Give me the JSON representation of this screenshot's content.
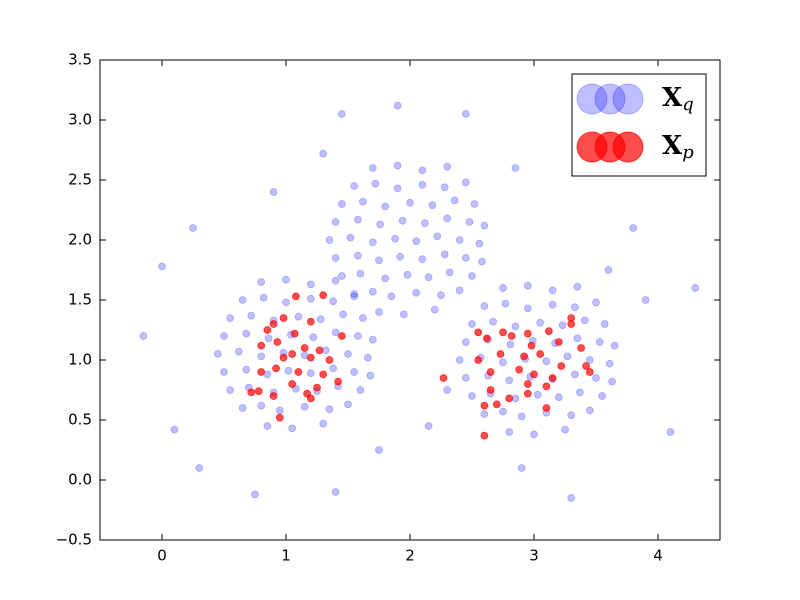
{
  "chart_data": {
    "type": "scatter",
    "xlim": [
      -0.5,
      4.5
    ],
    "ylim": [
      -0.5,
      3.5
    ],
    "xticks": [
      0,
      1,
      2,
      3,
      4
    ],
    "yticks": [
      {
        "value": -0.5,
        "label": "−0.5"
      },
      {
        "value": 0,
        "label": "0.0"
      },
      {
        "value": 0.5,
        "label": "0.5"
      },
      {
        "value": 1,
        "label": "1.0"
      },
      {
        "value": 1.5,
        "label": "1.5"
      },
      {
        "value": 2,
        "label": "2.0"
      },
      {
        "value": 2.5,
        "label": "2.5"
      },
      {
        "value": 3,
        "label": "3.0"
      },
      {
        "value": 3.5,
        "label": "3.5"
      }
    ],
    "grid": false,
    "legend": "upper right",
    "series": [
      {
        "name": "Xq",
        "color": "#0000ff",
        "alpha": 0.25,
        "x": [
          0.85,
          1.05,
          1.3,
          0.65,
          0.8,
          0.95,
          1.15,
          1.35,
          1.5,
          0.55,
          0.7,
          0.9,
          1.08,
          1.25,
          1.42,
          1.6,
          0.5,
          0.68,
          0.85,
          1.02,
          1.2,
          1.38,
          1.55,
          1.68,
          0.45,
          0.62,
          0.8,
          0.98,
          1.15,
          1.32,
          1.5,
          1.66,
          0.5,
          0.68,
          0.86,
          1.04,
          1.22,
          1.4,
          1.58,
          1.7,
          0.55,
          0.72,
          0.9,
          1.1,
          1.28,
          1.46,
          1.62,
          0.65,
          0.82,
          1.0,
          1.2,
          1.38,
          1.55,
          0.8,
          1.0,
          1.2,
          1.4,
          2.8,
          3.0,
          3.25,
          2.6,
          2.75,
          2.9,
          3.1,
          3.3,
          3.45,
          2.5,
          2.65,
          2.85,
          3.03,
          3.2,
          3.37,
          3.55,
          2.45,
          2.63,
          2.8,
          2.97,
          3.15,
          3.33,
          3.5,
          3.63,
          2.4,
          2.57,
          2.75,
          2.93,
          3.1,
          3.27,
          3.45,
          3.61,
          2.45,
          2.63,
          2.81,
          2.99,
          3.17,
          3.35,
          3.53,
          3.65,
          2.5,
          2.67,
          2.85,
          3.05,
          3.23,
          3.41,
          3.57,
          2.6,
          2.77,
          2.95,
          3.15,
          3.33,
          3.5,
          2.75,
          2.95,
          3.15,
          3.35,
          1.75,
          1.95,
          2.2,
          1.55,
          1.7,
          1.85,
          2.05,
          2.25,
          2.4,
          1.45,
          1.6,
          1.8,
          1.98,
          2.15,
          2.32,
          2.5,
          1.4,
          1.58,
          1.75,
          1.92,
          2.1,
          2.28,
          2.45,
          2.58,
          1.35,
          1.52,
          1.7,
          1.88,
          2.05,
          2.22,
          2.4,
          2.56,
          1.4,
          1.58,
          1.76,
          1.94,
          2.12,
          2.3,
          2.48,
          2.6,
          1.45,
          1.62,
          1.8,
          2.0,
          2.18,
          2.36,
          2.52,
          1.55,
          1.72,
          1.9,
          2.1,
          2.28,
          2.45,
          1.7,
          1.9,
          2.1,
          2.3,
          -0.15,
          0.0,
          0.1,
          0.3,
          0.75,
          1.4,
          1.3,
          1.45,
          1.9,
          2.45,
          2.85,
          3.6,
          3.9,
          4.3,
          4.1,
          3.3,
          2.9,
          2.3,
          1.75,
          2.15,
          0.25,
          3.8,
          0.9
        ],
        "values": [
          0.45,
          0.43,
          0.47,
          0.6,
          0.62,
          0.58,
          0.61,
          0.59,
          0.63,
          0.75,
          0.77,
          0.73,
          0.76,
          0.74,
          0.78,
          0.75,
          0.9,
          0.92,
          0.88,
          0.91,
          0.89,
          0.93,
          0.9,
          0.87,
          1.05,
          1.07,
          1.03,
          1.06,
          1.04,
          1.08,
          1.05,
          1.02,
          1.2,
          1.22,
          1.18,
          1.21,
          1.19,
          1.23,
          1.2,
          1.17,
          1.35,
          1.37,
          1.33,
          1.36,
          1.34,
          1.38,
          1.35,
          1.5,
          1.52,
          1.48,
          1.51,
          1.49,
          1.53,
          1.65,
          1.67,
          1.63,
          1.66,
          0.4,
          0.38,
          0.42,
          0.55,
          0.57,
          0.53,
          0.56,
          0.54,
          0.58,
          0.7,
          0.72,
          0.68,
          0.71,
          0.69,
          0.73,
          0.7,
          0.85,
          0.87,
          0.83,
          0.86,
          0.84,
          0.88,
          0.85,
          0.82,
          1.0,
          1.02,
          0.98,
          1.01,
          0.99,
          1.03,
          1.0,
          0.97,
          1.15,
          1.17,
          1.13,
          1.16,
          1.14,
          1.18,
          1.15,
          1.12,
          1.3,
          1.32,
          1.28,
          1.31,
          1.29,
          1.33,
          1.3,
          1.45,
          1.47,
          1.43,
          1.46,
          1.44,
          1.48,
          1.6,
          1.62,
          1.58,
          1.61,
          1.4,
          1.38,
          1.42,
          1.55,
          1.57,
          1.53,
          1.56,
          1.54,
          1.58,
          1.7,
          1.72,
          1.68,
          1.71,
          1.69,
          1.73,
          1.7,
          1.85,
          1.87,
          1.83,
          1.86,
          1.84,
          1.88,
          1.85,
          1.82,
          2.0,
          2.02,
          1.98,
          2.01,
          1.99,
          2.03,
          2.0,
          1.97,
          2.15,
          2.17,
          2.13,
          2.16,
          2.14,
          2.18,
          2.15,
          2.12,
          2.3,
          2.32,
          2.28,
          2.31,
          2.29,
          2.33,
          2.3,
          2.45,
          2.47,
          2.43,
          2.46,
          2.44,
          2.48,
          2.6,
          2.62,
          2.58,
          2.61,
          1.2,
          1.78,
          0.42,
          0.1,
          -0.12,
          -0.1,
          2.72,
          3.05,
          3.12,
          3.05,
          2.6,
          1.75,
          1.5,
          1.6,
          0.4,
          -0.15,
          0.1,
          0.75,
          0.25,
          0.45,
          2.1,
          2.1,
          2.4
        ]
      },
      {
        "name": "Xp",
        "color": "#ff0000",
        "alpha": 0.7,
        "x": [
          1.08,
          1.3,
          0.9,
          0.98,
          1.2,
          0.85,
          1.07,
          1.45,
          0.93,
          1.15,
          1.27,
          0.8,
          1.05,
          1.2,
          1.35,
          0.98,
          0.8,
          0.92,
          1.1,
          1.3,
          1.42,
          1.05,
          1.25,
          0.72,
          0.78,
          1.17,
          0.9,
          1.2,
          0.95,
          2.55,
          2.75,
          2.95,
          3.12,
          3.3,
          3.3,
          2.62,
          2.82,
          2.98,
          3.2,
          3.38,
          2.55,
          2.73,
          2.92,
          3.05,
          3.22,
          3.42,
          2.65,
          2.88,
          3.0,
          3.15,
          3.45,
          2.95,
          3.1,
          2.65,
          2.8,
          2.95,
          2.7,
          2.6,
          3.1,
          2.27,
          2.6
        ],
        "values": [
          1.53,
          1.54,
          1.3,
          1.35,
          1.32,
          1.25,
          1.22,
          1.2,
          1.15,
          1.1,
          1.08,
          1.12,
          1.05,
          1.02,
          1.0,
          1.02,
          0.9,
          0.93,
          0.9,
          0.88,
          0.82,
          0.8,
          0.77,
          0.73,
          0.74,
          0.72,
          0.7,
          0.68,
          0.52,
          1.23,
          1.23,
          1.22,
          1.24,
          1.35,
          1.3,
          1.18,
          1.2,
          1.12,
          1.15,
          1.1,
          1.0,
          1.05,
          1.03,
          1.05,
          0.95,
          0.95,
          0.9,
          0.92,
          0.88,
          0.85,
          0.9,
          0.8,
          0.78,
          0.75,
          0.68,
          0.72,
          0.63,
          0.62,
          0.6,
          0.85,
          0.37
        ]
      }
    ]
  }
}
